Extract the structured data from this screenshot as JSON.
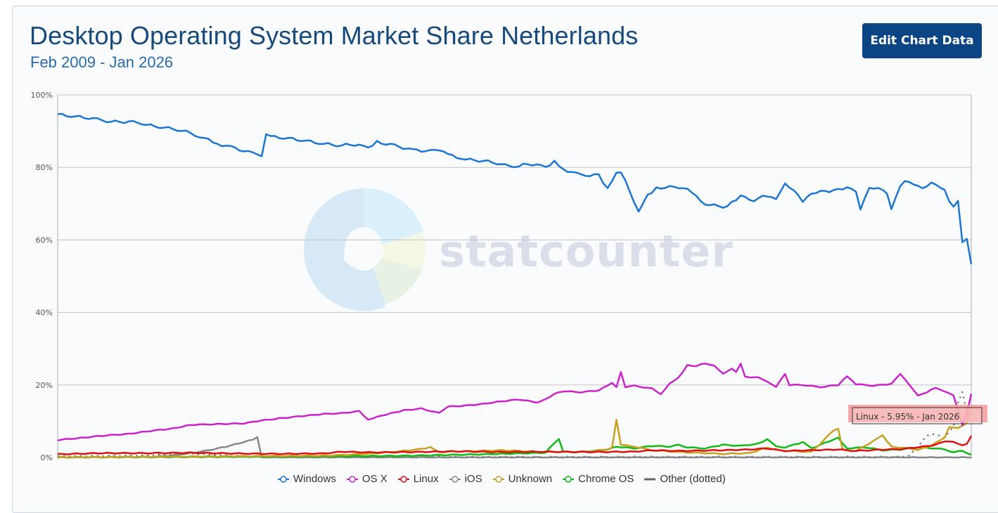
{
  "header": {
    "title": "Desktop Operating System Market Share Netherlands",
    "subtitle": "Feb 2009 - Jan 2026",
    "edit_button_label": "Edit Chart Data"
  },
  "watermark": {
    "text": "statcounter"
  },
  "tooltip": {
    "text": "Linux - 5.95% - Jan 2026"
  },
  "legend": [
    {
      "label": "Windows",
      "color": "#1a76d2",
      "marker": "circle"
    },
    {
      "label": "OS X",
      "color": "#cc22cc",
      "marker": "circle"
    },
    {
      "label": "Linux",
      "color": "#dd1111",
      "marker": "circle",
      "highlighted": true
    },
    {
      "label": "iOS",
      "color": "#888888",
      "marker": "circle"
    },
    {
      "label": "Unknown",
      "color": "#c9a020",
      "marker": "circle"
    },
    {
      "label": "Chrome OS",
      "color": "#11bb11",
      "marker": "circle"
    },
    {
      "label": "Other (dotted)",
      "color": "#666666",
      "marker": "line"
    }
  ],
  "chart_data": {
    "type": "line",
    "title": "Desktop Operating System Market Share Netherlands",
    "subtitle": "Feb 2009 - Jan 2026",
    "xlabel": "",
    "ylabel": "",
    "ylim": [
      0,
      100
    ],
    "yticks": [
      "0%",
      "20%",
      "40%",
      "60%",
      "80%",
      "100%"
    ],
    "grid": true,
    "legend_position": "bottom",
    "x_range": [
      "Feb 2009",
      "Jan 2026"
    ],
    "n_points": 204,
    "series": [
      {
        "name": "Windows",
        "color": "#1a76d2",
        "points": [
          [
            0,
            94.6
          ],
          [
            4,
            94.0
          ],
          [
            8,
            93.5
          ],
          [
            10,
            93.0
          ],
          [
            12,
            92.6
          ],
          [
            18,
            92.5
          ],
          [
            20,
            91.7
          ],
          [
            24,
            91.0
          ],
          [
            28,
            90.2
          ],
          [
            32,
            88.6
          ],
          [
            36,
            86.5
          ],
          [
            40,
            85.3
          ],
          [
            44,
            83.8
          ],
          [
            46,
            83.4
          ],
          [
            47,
            89.3
          ],
          [
            48,
            88.5
          ],
          [
            52,
            88.0
          ],
          [
            56,
            87.3
          ],
          [
            60,
            86.5
          ],
          [
            64,
            86.0
          ],
          [
            66,
            86.4
          ],
          [
            70,
            85.6
          ],
          [
            72,
            87.0
          ],
          [
            76,
            86.0
          ],
          [
            80,
            84.8
          ],
          [
            84,
            84.5
          ],
          [
            86,
            85.0
          ],
          [
            88,
            83.5
          ],
          [
            92,
            82.2
          ],
          [
            96,
            81.8
          ],
          [
            100,
            81.0
          ],
          [
            102,
            80.0
          ],
          [
            106,
            81.0
          ],
          [
            110,
            80.2
          ],
          [
            112,
            81.5
          ],
          [
            114,
            79.5
          ],
          [
            118,
            77.8
          ],
          [
            122,
            77.9
          ],
          [
            124,
            74.0
          ],
          [
            126,
            78.8
          ],
          [
            127,
            78.8
          ],
          [
            129,
            73.5
          ],
          [
            131,
            67.5
          ],
          [
            133,
            72.5
          ],
          [
            135,
            74.2
          ],
          [
            137,
            74.5
          ],
          [
            140,
            74.6
          ],
          [
            142,
            73.8
          ],
          [
            144,
            72.0
          ],
          [
            146,
            70.0
          ],
          [
            150,
            69.0
          ],
          [
            152,
            70.2
          ],
          [
            154,
            72.0
          ],
          [
            157,
            71.0
          ],
          [
            160,
            72.3
          ],
          [
            162,
            71.0
          ],
          [
            164,
            75.3
          ],
          [
            166,
            74.0
          ],
          [
            168,
            70.8
          ],
          [
            170,
            73.0
          ],
          [
            174,
            73.5
          ],
          [
            176,
            73.8
          ],
          [
            178,
            74.5
          ],
          [
            180,
            73.0
          ],
          [
            181,
            68.6
          ],
          [
            183,
            74.0
          ],
          [
            185,
            74.5
          ],
          [
            187,
            72.5
          ],
          [
            188,
            68.8
          ],
          [
            190,
            74.5
          ],
          [
            191,
            76.5
          ],
          [
            193,
            75.0
          ],
          [
            195,
            74.5
          ],
          [
            197,
            75.5
          ],
          [
            198,
            75.4
          ],
          [
            200,
            74.0
          ],
          [
            201,
            71.0
          ],
          [
            202,
            69.5
          ],
          [
            203,
            70.5
          ],
          [
            204,
            59.7
          ],
          [
            205,
            60.2
          ],
          [
            206,
            53.3
          ]
        ]
      },
      {
        "name": "OS X",
        "color": "#cc22cc",
        "points": [
          [
            0,
            4.8
          ],
          [
            6,
            5.5
          ],
          [
            10,
            6.0
          ],
          [
            16,
            6.5
          ],
          [
            20,
            7.2
          ],
          [
            26,
            8.0
          ],
          [
            30,
            9.0
          ],
          [
            36,
            9.2
          ],
          [
            42,
            9.4
          ],
          [
            46,
            10.2
          ],
          [
            50,
            10.8
          ],
          [
            56,
            11.5
          ],
          [
            60,
            12.0
          ],
          [
            64,
            12.2
          ],
          [
            68,
            12.8
          ],
          [
            70,
            10.5
          ],
          [
            74,
            11.8
          ],
          [
            78,
            13.0
          ],
          [
            82,
            13.5
          ],
          [
            86,
            12.2
          ],
          [
            88,
            14.0
          ],
          [
            92,
            14.3
          ],
          [
            96,
            14.8
          ],
          [
            100,
            15.5
          ],
          [
            104,
            16.0
          ],
          [
            108,
            15.2
          ],
          [
            110,
            16.0
          ],
          [
            112,
            17.5
          ],
          [
            114,
            18.3
          ],
          [
            118,
            18.0
          ],
          [
            122,
            18.5
          ],
          [
            125,
            20.5
          ],
          [
            126,
            19.3
          ],
          [
            127,
            23.5
          ],
          [
            128,
            19.5
          ],
          [
            130,
            19.8
          ],
          [
            132,
            19.4
          ],
          [
            134,
            19.0
          ],
          [
            136,
            17.5
          ],
          [
            138,
            20.5
          ],
          [
            140,
            22.0
          ],
          [
            142,
            25.5
          ],
          [
            144,
            25.2
          ],
          [
            146,
            26.0
          ],
          [
            148,
            25.3
          ],
          [
            150,
            23.0
          ],
          [
            152,
            24.5
          ],
          [
            153,
            23.5
          ],
          [
            154,
            26.0
          ],
          [
            155,
            22.3
          ],
          [
            158,
            22.0
          ],
          [
            160,
            21.0
          ],
          [
            162,
            19.5
          ],
          [
            164,
            23.0
          ],
          [
            165,
            20.0
          ],
          [
            168,
            20.0
          ],
          [
            172,
            19.4
          ],
          [
            176,
            20.0
          ],
          [
            178,
            22.5
          ],
          [
            180,
            20.2
          ],
          [
            184,
            19.8
          ],
          [
            188,
            20.3
          ],
          [
            190,
            23.0
          ],
          [
            192,
            20.0
          ],
          [
            194,
            17.0
          ],
          [
            196,
            18.0
          ],
          [
            198,
            19.3
          ],
          [
            200,
            18.2
          ],
          [
            202,
            17.0
          ],
          [
            203,
            13.0
          ],
          [
            204,
            9.0
          ],
          [
            205,
            12.0
          ],
          [
            206,
            17.5
          ]
        ]
      },
      {
        "name": "Linux",
        "color": "#dd1111",
        "points": [
          [
            0,
            0.9
          ],
          [
            10,
            1.2
          ],
          [
            20,
            1.2
          ],
          [
            30,
            1.3
          ],
          [
            40,
            1.1
          ],
          [
            50,
            1.0
          ],
          [
            60,
            1.1
          ],
          [
            64,
            1.6
          ],
          [
            70,
            1.4
          ],
          [
            80,
            1.5
          ],
          [
            90,
            1.7
          ],
          [
            100,
            1.5
          ],
          [
            110,
            1.6
          ],
          [
            120,
            1.5
          ],
          [
            130,
            1.6
          ],
          [
            134,
            2.0
          ],
          [
            140,
            1.8
          ],
          [
            150,
            2.0
          ],
          [
            156,
            2.2
          ],
          [
            160,
            2.5
          ],
          [
            164,
            1.8
          ],
          [
            170,
            2.0
          ],
          [
            176,
            2.2
          ],
          [
            180,
            1.8
          ],
          [
            186,
            2.2
          ],
          [
            190,
            2.3
          ],
          [
            194,
            2.8
          ],
          [
            198,
            3.5
          ],
          [
            200,
            4.5
          ],
          [
            202,
            4.2
          ],
          [
            204,
            3.5
          ],
          [
            205,
            3.7
          ],
          [
            206,
            5.95
          ]
        ]
      },
      {
        "name": "iOS",
        "color": "#888888",
        "points": [
          [
            0,
            0.0
          ],
          [
            22,
            0.2
          ],
          [
            26,
            0.6
          ],
          [
            30,
            1.2
          ],
          [
            34,
            2.0
          ],
          [
            38,
            3.0
          ],
          [
            42,
            4.2
          ],
          [
            44,
            5.0
          ],
          [
            45,
            5.6
          ],
          [
            46,
            0.0
          ],
          [
            206,
            0.0
          ]
        ]
      },
      {
        "name": "Unknown",
        "color": "#c9a020",
        "points": [
          [
            0,
            0.0
          ],
          [
            60,
            0.5
          ],
          [
            70,
            1.0
          ],
          [
            80,
            2.0
          ],
          [
            84,
            2.8
          ],
          [
            86,
            1.5
          ],
          [
            100,
            2.0
          ],
          [
            110,
            1.5
          ],
          [
            120,
            1.6
          ],
          [
            125,
            2.5
          ],
          [
            126,
            10.5
          ],
          [
            127,
            3.5
          ],
          [
            130,
            3.0
          ],
          [
            134,
            2.0
          ],
          [
            140,
            1.5
          ],
          [
            150,
            1.0
          ],
          [
            156,
            1.2
          ],
          [
            160,
            2.8
          ],
          [
            162,
            2.0
          ],
          [
            170,
            1.5
          ],
          [
            175,
            7.5
          ],
          [
            176,
            8.0
          ],
          [
            177,
            2.0
          ],
          [
            180,
            1.8
          ],
          [
            186,
            6.0
          ],
          [
            188,
            3.0
          ],
          [
            194,
            2.2
          ],
          [
            196,
            2.8
          ],
          [
            198,
            4.0
          ],
          [
            200,
            5.5
          ],
          [
            201,
            8.5
          ],
          [
            203,
            8.0
          ],
          [
            205,
            9.5
          ],
          [
            206,
            13.5
          ]
        ]
      },
      {
        "name": "Chrome OS",
        "color": "#11bb11",
        "points": [
          [
            0,
            0.0
          ],
          [
            60,
            0.3
          ],
          [
            80,
            0.5
          ],
          [
            100,
            1.0
          ],
          [
            110,
            1.3
          ],
          [
            112,
            4.0
          ],
          [
            113,
            5.0
          ],
          [
            114,
            1.5
          ],
          [
            118,
            1.5
          ],
          [
            122,
            2.0
          ],
          [
            124,
            2.2
          ],
          [
            126,
            3.0
          ],
          [
            130,
            2.5
          ],
          [
            134,
            3.2
          ],
          [
            138,
            3.0
          ],
          [
            140,
            3.5
          ],
          [
            142,
            2.8
          ],
          [
            146,
            2.5
          ],
          [
            150,
            3.5
          ],
          [
            154,
            3.2
          ],
          [
            158,
            3.8
          ],
          [
            160,
            5.0
          ],
          [
            162,
            3.0
          ],
          [
            164,
            2.8
          ],
          [
            168,
            4.2
          ],
          [
            170,
            2.5
          ],
          [
            172,
            3.5
          ],
          [
            176,
            5.5
          ],
          [
            178,
            2.5
          ],
          [
            182,
            2.8
          ],
          [
            186,
            2.0
          ],
          [
            190,
            2.2
          ],
          [
            194,
            2.8
          ],
          [
            198,
            2.5
          ],
          [
            200,
            2.2
          ],
          [
            202,
            1.5
          ],
          [
            204,
            1.8
          ],
          [
            206,
            0.8
          ]
        ]
      },
      {
        "name": "Other (dotted)",
        "color": "#555555",
        "dotted": true,
        "points": [
          [
            0,
            0.3
          ],
          [
            20,
            0.6
          ],
          [
            30,
            1.0
          ],
          [
            40,
            0.5
          ],
          [
            46,
            0.2
          ],
          [
            60,
            0.2
          ],
          [
            120,
            0.2
          ],
          [
            190,
            0.2
          ],
          [
            192,
            0.5
          ],
          [
            194,
            3.0
          ],
          [
            196,
            6.0
          ],
          [
            198,
            6.5
          ],
          [
            200,
            5.5
          ],
          [
            202,
            8.5
          ],
          [
            203,
            15.0
          ],
          [
            204,
            18.0
          ],
          [
            205,
            12.5
          ],
          [
            206,
            13.0
          ]
        ]
      }
    ]
  }
}
